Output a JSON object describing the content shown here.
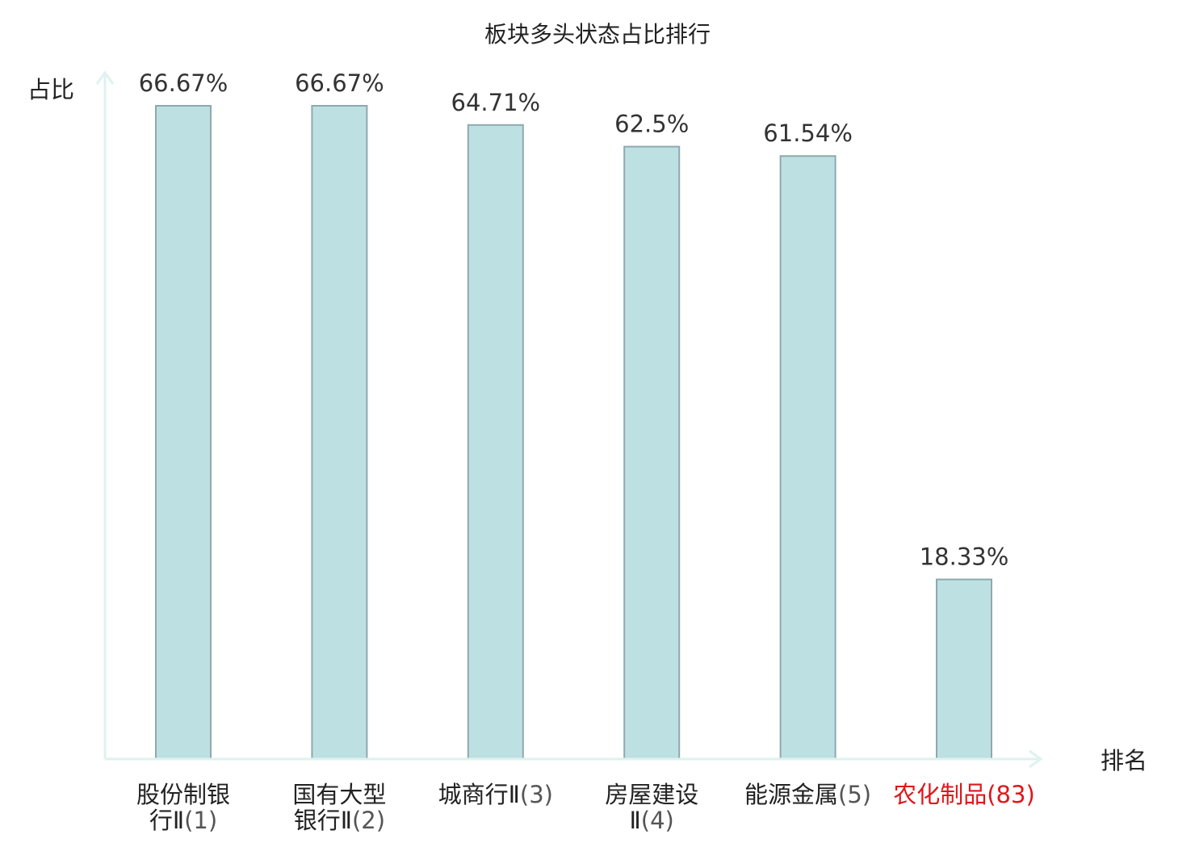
{
  "chart_data": {
    "type": "bar",
    "title": "板块多头状态占比排行",
    "xlabel": "排名",
    "ylabel": "占比",
    "categories": [
      {
        "name": "股份制银",
        "name2": "行Ⅱ",
        "rank": "(1)"
      },
      {
        "name": "国有大型",
        "name2": "银行Ⅱ",
        "rank": "(2)"
      },
      {
        "name": "城商行Ⅱ",
        "name2": "",
        "rank": "(3)"
      },
      {
        "name": "房屋建设",
        "name2": "Ⅱ",
        "rank": "(4)"
      },
      {
        "name": "能源金属",
        "name2": "",
        "rank": "(5)"
      },
      {
        "name": "农化制品",
        "name2": "",
        "rank": "(83)",
        "highlight": true
      }
    ],
    "values": [
      66.67,
      66.67,
      64.71,
      62.5,
      61.54,
      18.33
    ],
    "value_labels": [
      "66.67%",
      "66.67%",
      "64.71%",
      "62.5%",
      "61.54%",
      "18.33%"
    ],
    "ylim": [
      0,
      67.5
    ],
    "grid": false,
    "legend": "none",
    "colors": {
      "bar_fill": "#bde0e3",
      "bar_stroke": "#8fa9ac",
      "axis": "#dff2ef",
      "text": "#222222",
      "value_text": "#333333",
      "rank_text": "#555555",
      "highlight": "#e0161b"
    }
  }
}
